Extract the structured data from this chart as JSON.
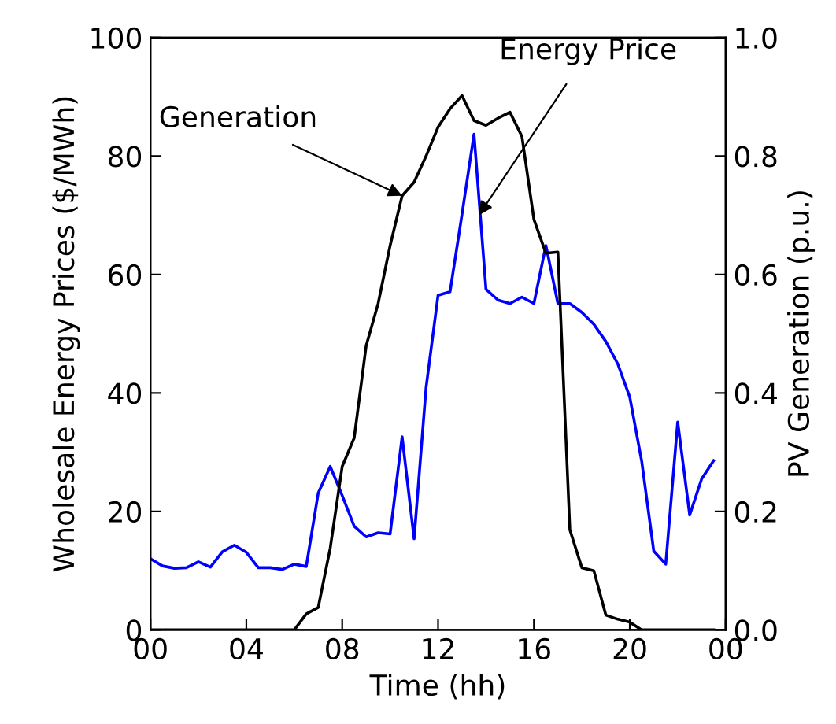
{
  "chart_data": {
    "type": "line",
    "xlabel": "Time (hh)",
    "ylabel": "Wholesale Energy Prices ($/MWh)",
    "y2label": "PV Generation (p.u.)",
    "x": [
      0,
      0.5,
      1,
      1.5,
      2,
      2.5,
      3,
      3.5,
      4,
      4.5,
      5,
      5.5,
      6,
      6.5,
      7,
      7.5,
      8,
      8.5,
      9,
      9.5,
      10,
      10.5,
      11,
      11.5,
      12,
      12.5,
      13,
      13.5,
      14,
      14.5,
      15,
      15.5,
      16,
      16.5,
      17,
      17.5,
      18,
      18.5,
      19,
      19.5,
      20,
      20.5,
      21,
      21.5,
      22,
      22.5,
      23,
      23.5
    ],
    "series": [
      {
        "color": "#0000ff",
        "values": [
          12.0,
          10.8,
          10.4,
          10.5,
          11.5,
          10.6,
          13.2,
          14.3,
          13.1,
          10.5,
          10.5,
          10.2,
          11.1,
          10.7,
          23.1,
          27.6,
          22.7,
          17.5,
          15.7,
          16.4,
          16.2,
          32.6,
          15.4,
          40.9,
          56.5,
          57.1,
          70.2,
          83.7,
          57.5,
          55.7,
          55.1,
          56.2,
          55.1,
          64.9,
          55.1,
          55.1,
          53.6,
          51.6,
          48.7,
          44.9,
          39.3,
          28.4,
          13.3,
          11.1,
          35.1,
          19.4,
          25.5,
          28.6
        ]
      },
      {
        "color": "#000000",
        "axis": "y2",
        "values": [
          0,
          0,
          0,
          0,
          0,
          0,
          0,
          0,
          0,
          0,
          0,
          0,
          0,
          0.027,
          0.038,
          0.138,
          0.276,
          0.324,
          0.48,
          0.551,
          0.649,
          0.733,
          0.756,
          0.8,
          0.849,
          0.88,
          0.902,
          0.86,
          0.852,
          0.864,
          0.874,
          0.833,
          0.693,
          0.636,
          0.638,
          0.169,
          0.105,
          0.1,
          0.025,
          0.018,
          0.013,
          0,
          0,
          0,
          0,
          0,
          0,
          0
        ]
      }
    ],
    "annotations": [
      {
        "text": "Generation",
        "x": 10.5,
        "y": 73.3
      },
      {
        "text": "Energy Price",
        "x": 13.7,
        "y": 70
      }
    ],
    "xlim": [
      0,
      24
    ],
    "xticks": [
      {
        "value": 0,
        "label": "00"
      },
      {
        "value": 4,
        "label": "04"
      },
      {
        "value": 8,
        "label": "08"
      },
      {
        "value": 12,
        "label": "12"
      },
      {
        "value": 16,
        "label": "16"
      },
      {
        "value": 20,
        "label": "20"
      },
      {
        "value": 24,
        "label": "00"
      }
    ],
    "ylim": [
      0,
      100
    ],
    "yticks": [
      0,
      20,
      40,
      60,
      80,
      100
    ],
    "y2lim": [
      0,
      1
    ],
    "y2ticks": [
      {
        "value": 0,
        "label": "0.0"
      },
      {
        "value": 0.2,
        "label": "0.2"
      },
      {
        "value": 0.4,
        "label": "0.4"
      },
      {
        "value": 0.6,
        "label": "0.6"
      },
      {
        "value": 0.8,
        "label": "0.8"
      },
      {
        "value": 1,
        "label": "1.0"
      }
    ],
    "grid": false,
    "legend": false,
    "marker": "none",
    "line_style": "solid"
  }
}
